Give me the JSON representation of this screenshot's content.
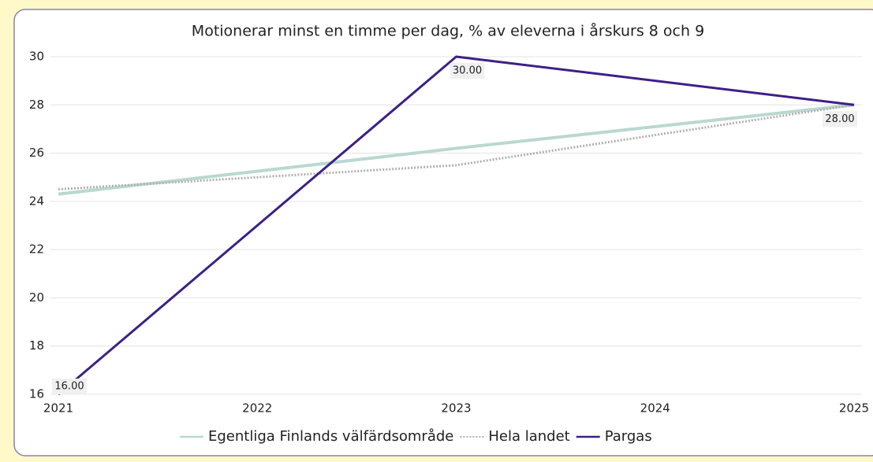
{
  "chart_data": {
    "type": "line",
    "title": "Motionerar minst en timme per dag, % av eleverna i årskurs 8 och 9",
    "x": [
      2021,
      2023,
      2025
    ],
    "series": [
      {
        "name": "Egentliga Finlands välfärdsområde",
        "color": "#b9d8d0",
        "style": "solid",
        "width": 4,
        "values": [
          24.3,
          26.2,
          28
        ]
      },
      {
        "name": "Hela landet",
        "color": "#b0b0b0",
        "style": "dotted",
        "width": 3,
        "values": [
          24.5,
          25.5,
          28
        ]
      },
      {
        "name": "Pargas",
        "color": "#3d1f86",
        "style": "solid",
        "width": 3,
        "values": [
          16,
          30,
          28
        ],
        "value_labels": [
          "16.00",
          "30.00",
          "28.00"
        ]
      }
    ],
    "xlim": [
      2021,
      2025
    ],
    "xticks": [
      2021,
      2022,
      2023,
      2024,
      2025
    ],
    "ylim": [
      16,
      30
    ],
    "yticks": [
      16,
      18,
      20,
      22,
      24,
      26,
      28,
      30
    ],
    "grid": true
  }
}
